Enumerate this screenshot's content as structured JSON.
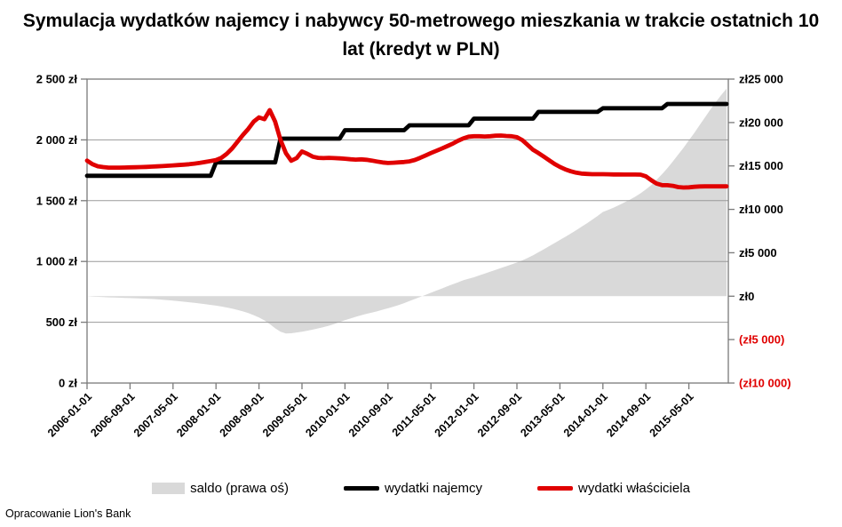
{
  "title": "Symulacja wydatków najemcy i nabywcy 50-metrowego mieszkania w trakcie ostatnich 10 lat (kredyt w PLN)",
  "footer": "Opracowanie Lion's Bank",
  "colors": {
    "area": "#d9d9d9",
    "tenant_line": "#000000",
    "owner_line": "#e00000",
    "negative_label": "#e00000",
    "gridline": "#9a9a9a",
    "axis": "#7a7a7a"
  },
  "legend": [
    {
      "label": "saldo (prawa oś)",
      "type": "area",
      "color": "#d9d9d9"
    },
    {
      "label": "wydatki najemcy",
      "type": "line",
      "color": "#000000"
    },
    {
      "label": "wydatki właściciela",
      "type": "line",
      "color": "#e00000"
    }
  ],
  "chart_data": {
    "type": "line",
    "x_start": "2006-01-01",
    "x_step_months": 1,
    "x_tick_labels": [
      "2006-01-01",
      "2006-09-01",
      "2007-05-01",
      "2008-01-01",
      "2008-09-01",
      "2009-05-01",
      "2010-01-01",
      "2010-09-01",
      "2011-05-01",
      "2012-01-01",
      "2012-09-01",
      "2013-05-01",
      "2014-01-01",
      "2014-09-01",
      "2015-05-01"
    ],
    "x_tick_every_n_points": 8,
    "left_axis": {
      "ticks": [
        "2 500 zł",
        "2 000 zł",
        "1 500 zł",
        "1 000 zł",
        "500 zł",
        "0 zł"
      ],
      "tick_values": [
        2500,
        2000,
        1500,
        1000,
        500,
        0
      ],
      "range": [
        0,
        2500
      ]
    },
    "right_axis": {
      "ticks": [
        "zł25 000",
        "zł20 000",
        "zł15 000",
        "zł10 000",
        "zł5 000",
        "zł0",
        "(zł5 000)",
        "(zł10 000)"
      ],
      "tick_values": [
        25000,
        20000,
        15000,
        10000,
        5000,
        0,
        -5000,
        -10000
      ],
      "range": [
        -10000,
        25000
      ]
    },
    "grid": "horizontal-only",
    "legend_position": "bottom",
    "series": [
      {
        "name": "saldo (prawa oś)",
        "type": "area",
        "axis": "right",
        "color": "#d9d9d9",
        "values": [
          0,
          -40,
          -75,
          -105,
          -130,
          -155,
          -175,
          -195,
          -215,
          -240,
          -265,
          -290,
          -320,
          -360,
          -405,
          -455,
          -510,
          -570,
          -635,
          -700,
          -770,
          -845,
          -920,
          -1000,
          -1090,
          -1190,
          -1300,
          -1430,
          -1580,
          -1750,
          -1950,
          -2180,
          -2450,
          -2780,
          -3200,
          -3700,
          -4100,
          -4300,
          -4270,
          -4180,
          -4080,
          -3970,
          -3850,
          -3710,
          -3560,
          -3400,
          -3200,
          -2980,
          -2760,
          -2570,
          -2380,
          -2200,
          -2030,
          -1880,
          -1730,
          -1560,
          -1390,
          -1210,
          -1010,
          -800,
          -560,
          -320,
          -80,
          160,
          400,
          640,
          880,
          1120,
          1360,
          1600,
          1830,
          2010,
          2180,
          2390,
          2600,
          2810,
          3030,
          3240,
          3450,
          3660,
          3880,
          4120,
          4400,
          4720,
          5050,
          5400,
          5760,
          6120,
          6480,
          6830,
          7200,
          7590,
          7990,
          8380,
          8800,
          9240,
          9700,
          9950,
          10200,
          10500,
          10800,
          11100,
          11450,
          11850,
          12300,
          12800,
          13400,
          14050,
          14750,
          15500,
          16300,
          17100,
          17950,
          18800,
          19700,
          20600,
          21500,
          22350,
          23150,
          23900
        ]
      },
      {
        "name": "wydatki najemcy",
        "type": "line",
        "axis": "left",
        "color": "#000000",
        "values": [
          1705,
          1705,
          1705,
          1705,
          1705,
          1705,
          1705,
          1705,
          1705,
          1705,
          1705,
          1705,
          1705,
          1705,
          1705,
          1705,
          1705,
          1705,
          1705,
          1705,
          1705,
          1705,
          1705,
          1705,
          1815,
          1815,
          1815,
          1815,
          1815,
          1815,
          1815,
          1815,
          1815,
          1815,
          1815,
          1815,
          2010,
          2010,
          2010,
          2010,
          2010,
          2010,
          2010,
          2010,
          2010,
          2010,
          2010,
          2010,
          2080,
          2080,
          2080,
          2080,
          2080,
          2080,
          2080,
          2080,
          2080,
          2080,
          2080,
          2080,
          2120,
          2120,
          2120,
          2120,
          2120,
          2120,
          2120,
          2120,
          2120,
          2120,
          2120,
          2120,
          2175,
          2175,
          2175,
          2175,
          2175,
          2175,
          2175,
          2175,
          2175,
          2175,
          2175,
          2175,
          2230,
          2230,
          2230,
          2230,
          2230,
          2230,
          2230,
          2230,
          2230,
          2230,
          2230,
          2230,
          2260,
          2260,
          2260,
          2260,
          2260,
          2260,
          2260,
          2260,
          2260,
          2260,
          2260,
          2260,
          2295,
          2295,
          2295,
          2295,
          2295,
          2295,
          2295,
          2295,
          2295,
          2295,
          2295,
          2295
        ]
      },
      {
        "name": "wydatki właściciela",
        "type": "line",
        "axis": "left",
        "color": "#e00000",
        "values": [
          1830,
          1800,
          1783,
          1776,
          1772,
          1772,
          1772,
          1773,
          1774,
          1775,
          1776,
          1778,
          1780,
          1782,
          1784,
          1787,
          1790,
          1793,
          1796,
          1800,
          1805,
          1811,
          1818,
          1826,
          1834,
          1852,
          1885,
          1930,
          1985,
          2040,
          2090,
          2150,
          2185,
          2170,
          2245,
          2150,
          2000,
          1890,
          1828,
          1850,
          1905,
          1885,
          1862,
          1852,
          1850,
          1852,
          1850,
          1848,
          1845,
          1841,
          1838,
          1840,
          1836,
          1830,
          1822,
          1814,
          1810,
          1812,
          1815,
          1818,
          1823,
          1835,
          1852,
          1872,
          1892,
          1910,
          1928,
          1948,
          1968,
          1992,
          2012,
          2026,
          2030,
          2030,
          2028,
          2030,
          2034,
          2036,
          2032,
          2030,
          2022,
          1998,
          1958,
          1918,
          1892,
          1862,
          1832,
          1802,
          1778,
          1757,
          1742,
          1730,
          1723,
          1720,
          1718,
          1718,
          1718,
          1717,
          1716,
          1716,
          1715,
          1715,
          1715,
          1714,
          1700,
          1668,
          1640,
          1628,
          1627,
          1622,
          1612,
          1608,
          1610,
          1614,
          1617,
          1618,
          1618,
          1618,
          1618,
          1618
        ]
      }
    ]
  }
}
